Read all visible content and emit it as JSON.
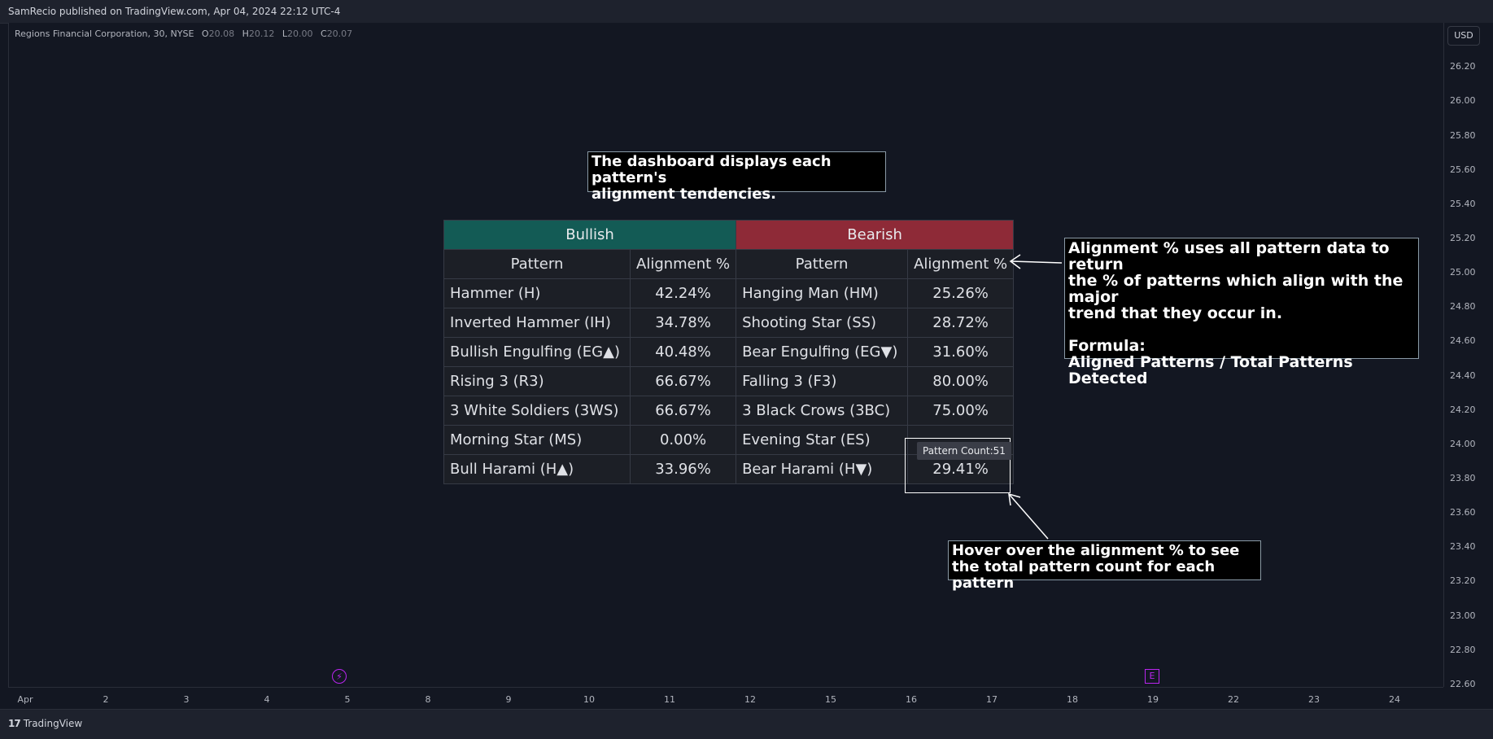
{
  "header": {
    "publisher": "SamRecio published on TradingView.com, Apr 04, 2024 22:12 UTC-4"
  },
  "symbol": {
    "title": "Regions Financial Corporation, 30, NYSE",
    "open_label": "O",
    "open": "20.08",
    "high_label": "H",
    "high": "20.12",
    "low_label": "L",
    "low": "20.00",
    "close_label": "C",
    "close": "20.07"
  },
  "price_axis": {
    "currency": "USD",
    "ticks": [
      "26.20",
      "26.00",
      "25.80",
      "25.60",
      "25.40",
      "25.20",
      "25.00",
      "24.80",
      "24.60",
      "24.40",
      "24.20",
      "24.00",
      "23.80",
      "23.60",
      "23.40",
      "23.20",
      "23.00",
      "22.80",
      "22.60"
    ]
  },
  "time_axis": {
    "ticks": [
      "Apr",
      "2",
      "3",
      "4",
      "5",
      "8",
      "9",
      "10",
      "11",
      "12",
      "15",
      "16",
      "17",
      "18",
      "19",
      "22",
      "23",
      "24"
    ]
  },
  "events": {
    "bolt_icon": "lightning-icon",
    "earnings_label": "E"
  },
  "notes": {
    "top": "The dashboard displays each pattern's\nalignment tendencies.",
    "right": "Alignment % uses all pattern data to return\nthe % of patterns which align with the major\ntrend that they occur in.\n\nFormula:\nAligned Patterns / Total Patterns Detected",
    "bottom": "Hover over the alignment % to see\nthe total pattern count for each pattern"
  },
  "dashboard": {
    "bullish_header": "Bullish",
    "bearish_header": "Bearish",
    "col_pattern": "Pattern",
    "col_alignment": "Alignment %",
    "rows": [
      {
        "bull": "Hammer (H)",
        "bull_pct": "42.24%",
        "bear": "Hanging Man (HM)",
        "bear_pct": "25.26%"
      },
      {
        "bull": "Inverted Hammer (IH)",
        "bull_pct": "34.78%",
        "bear": "Shooting Star (SS)",
        "bear_pct": "28.72%"
      },
      {
        "bull": "Bullish Engulfing (EG▲)",
        "bull_pct": "40.48%",
        "bear": "Bear Engulfing (EG▼)",
        "bear_pct": "31.60%"
      },
      {
        "bull": "Rising 3 (R3)",
        "bull_pct": "66.67%",
        "bear": "Falling 3 (F3)",
        "bear_pct": "80.00%"
      },
      {
        "bull": "3 White Soldiers (3WS)",
        "bull_pct": "66.67%",
        "bear": "3 Black Crows (3BC)",
        "bear_pct": "75.00%"
      },
      {
        "bull": "Morning Star (MS)",
        "bull_pct": "0.00%",
        "bear": "Evening Star (ES)",
        "bear_pct": ""
      },
      {
        "bull": "Bull Harami (H▲)",
        "bull_pct": "33.96%",
        "bear": "Bear Harami (H▼)",
        "bear_pct": "29.41%"
      }
    ],
    "tooltip": "Pattern Count:51"
  },
  "footer": {
    "brand": "TradingView",
    "logo_mark": "17"
  },
  "colors": {
    "background": "#131722",
    "bullish": "#135b55",
    "bearish": "#8e2a37",
    "event": "#b925ef"
  }
}
